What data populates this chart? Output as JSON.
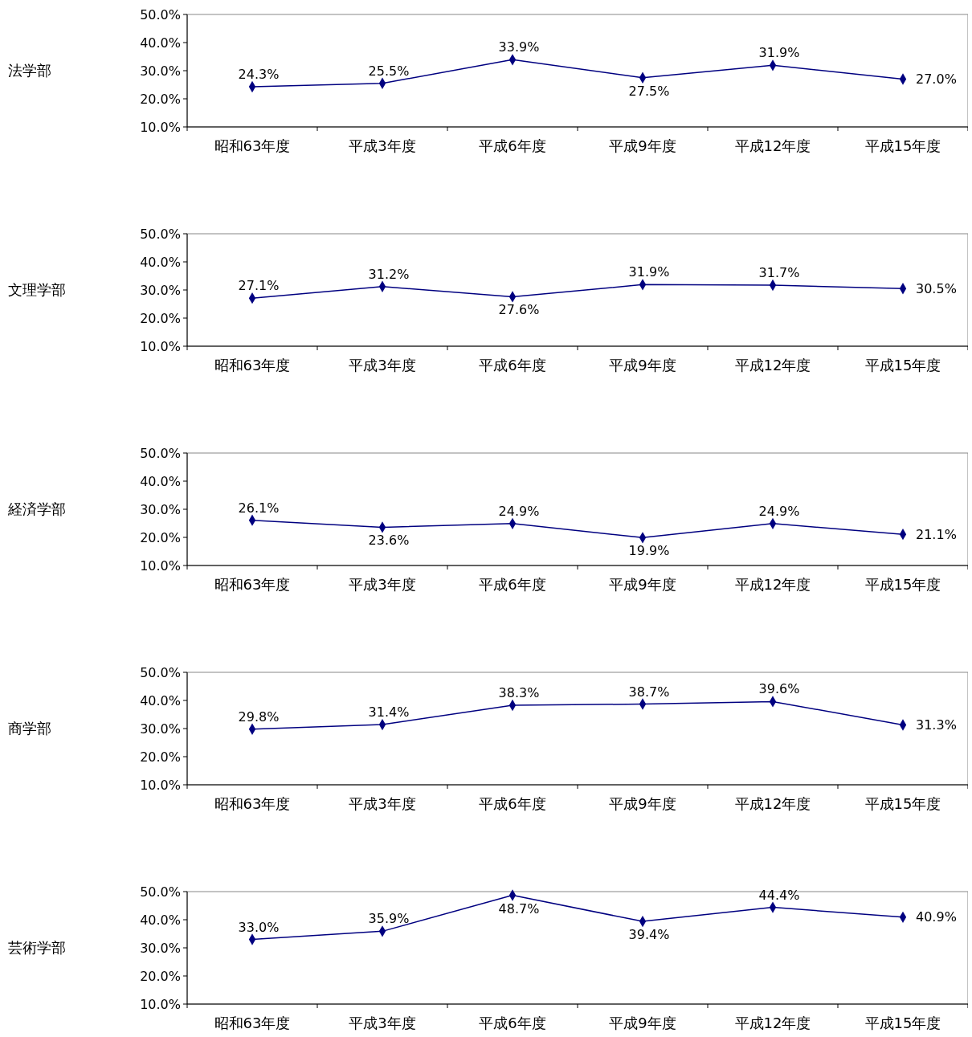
{
  "chart_data": [
    {
      "type": "line",
      "ylabel": "法学部",
      "categories": [
        "昭和63年度",
        "平成3年度",
        "平成6年度",
        "平成9年度",
        "平成12年度",
        "平成15年度"
      ],
      "series": [
        {
          "color": "#000080",
          "values": [
            24.3,
            25.5,
            33.9,
            27.5,
            31.9,
            27.0
          ]
        }
      ],
      "ylim": [
        10,
        50
      ],
      "yticks": [
        {
          "value": 10,
          "label": "10.0%"
        },
        {
          "value": 20,
          "label": "20.0%"
        },
        {
          "value": 30,
          "label": "30.0%"
        },
        {
          "value": 40,
          "label": "40.0%"
        },
        {
          "value": 50,
          "label": "50.0%"
        }
      ],
      "value_labels": [
        "24.3%",
        "25.5%",
        "33.9%",
        "27.5%",
        "31.9%",
        "27.0%"
      ],
      "marker": "diamond",
      "grid": false
    },
    {
      "type": "line",
      "ylabel": "文理学部",
      "categories": [
        "昭和63年度",
        "平成3年度",
        "平成6年度",
        "平成9年度",
        "平成12年度",
        "平成15年度"
      ],
      "series": [
        {
          "color": "#000080",
          "values": [
            27.1,
            31.2,
            27.6,
            31.9,
            31.7,
            30.5
          ]
        }
      ],
      "ylim": [
        10,
        50
      ],
      "yticks": [
        {
          "value": 10,
          "label": "10.0%"
        },
        {
          "value": 20,
          "label": "20.0%"
        },
        {
          "value": 30,
          "label": "30.0%"
        },
        {
          "value": 40,
          "label": "40.0%"
        },
        {
          "value": 50,
          "label": "50.0%"
        }
      ],
      "value_labels": [
        "27.1%",
        "31.2%",
        "27.6%",
        "31.9%",
        "31.7%",
        "30.5%"
      ],
      "marker": "diamond",
      "grid": false
    },
    {
      "type": "line",
      "ylabel": "経済学部",
      "categories": [
        "昭和63年度",
        "平成3年度",
        "平成6年度",
        "平成9年度",
        "平成12年度",
        "平成15年度"
      ],
      "series": [
        {
          "color": "#000080",
          "values": [
            26.1,
            23.6,
            24.9,
            19.9,
            24.9,
            21.1
          ]
        }
      ],
      "ylim": [
        10,
        50
      ],
      "yticks": [
        {
          "value": 10,
          "label": "10.0%"
        },
        {
          "value": 20,
          "label": "20.0%"
        },
        {
          "value": 30,
          "label": "30.0%"
        },
        {
          "value": 40,
          "label": "40.0%"
        },
        {
          "value": 50,
          "label": "50.0%"
        }
      ],
      "value_labels": [
        "26.1%",
        "23.6%",
        "24.9%",
        "19.9%",
        "24.9%",
        "21.1%"
      ],
      "marker": "diamond",
      "grid": false
    },
    {
      "type": "line",
      "ylabel": "商学部",
      "categories": [
        "昭和63年度",
        "平成3年度",
        "平成6年度",
        "平成9年度",
        "平成12年度",
        "平成15年度"
      ],
      "series": [
        {
          "color": "#000080",
          "values": [
            29.8,
            31.4,
            38.3,
            38.7,
            39.6,
            31.3
          ]
        }
      ],
      "ylim": [
        10,
        50
      ],
      "yticks": [
        {
          "value": 10,
          "label": "10.0%"
        },
        {
          "value": 20,
          "label": "20.0%"
        },
        {
          "value": 30,
          "label": "30.0%"
        },
        {
          "value": 40,
          "label": "40.0%"
        },
        {
          "value": 50,
          "label": "50.0%"
        }
      ],
      "value_labels": [
        "29.8%",
        "31.4%",
        "38.3%",
        "38.7%",
        "39.6%",
        "31.3%"
      ],
      "marker": "diamond",
      "grid": false
    },
    {
      "type": "line",
      "ylabel": "芸術学部",
      "categories": [
        "昭和63年度",
        "平成3年度",
        "平成6年度",
        "平成9年度",
        "平成12年度",
        "平成15年度"
      ],
      "series": [
        {
          "color": "#000080",
          "values": [
            33.0,
            35.9,
            48.7,
            39.4,
            44.4,
            40.9
          ]
        }
      ],
      "ylim": [
        10,
        50
      ],
      "yticks": [
        {
          "value": 10,
          "label": "10.0%"
        },
        {
          "value": 20,
          "label": "20.0%"
        },
        {
          "value": 30,
          "label": "30.0%"
        },
        {
          "value": 40,
          "label": "40.0%"
        },
        {
          "value": 50,
          "label": "50.0%"
        }
      ],
      "value_labels": [
        "33.0%",
        "35.9%",
        "48.7%",
        "39.4%",
        "44.4%",
        "40.9%"
      ],
      "marker": "diamond",
      "grid": false
    }
  ]
}
